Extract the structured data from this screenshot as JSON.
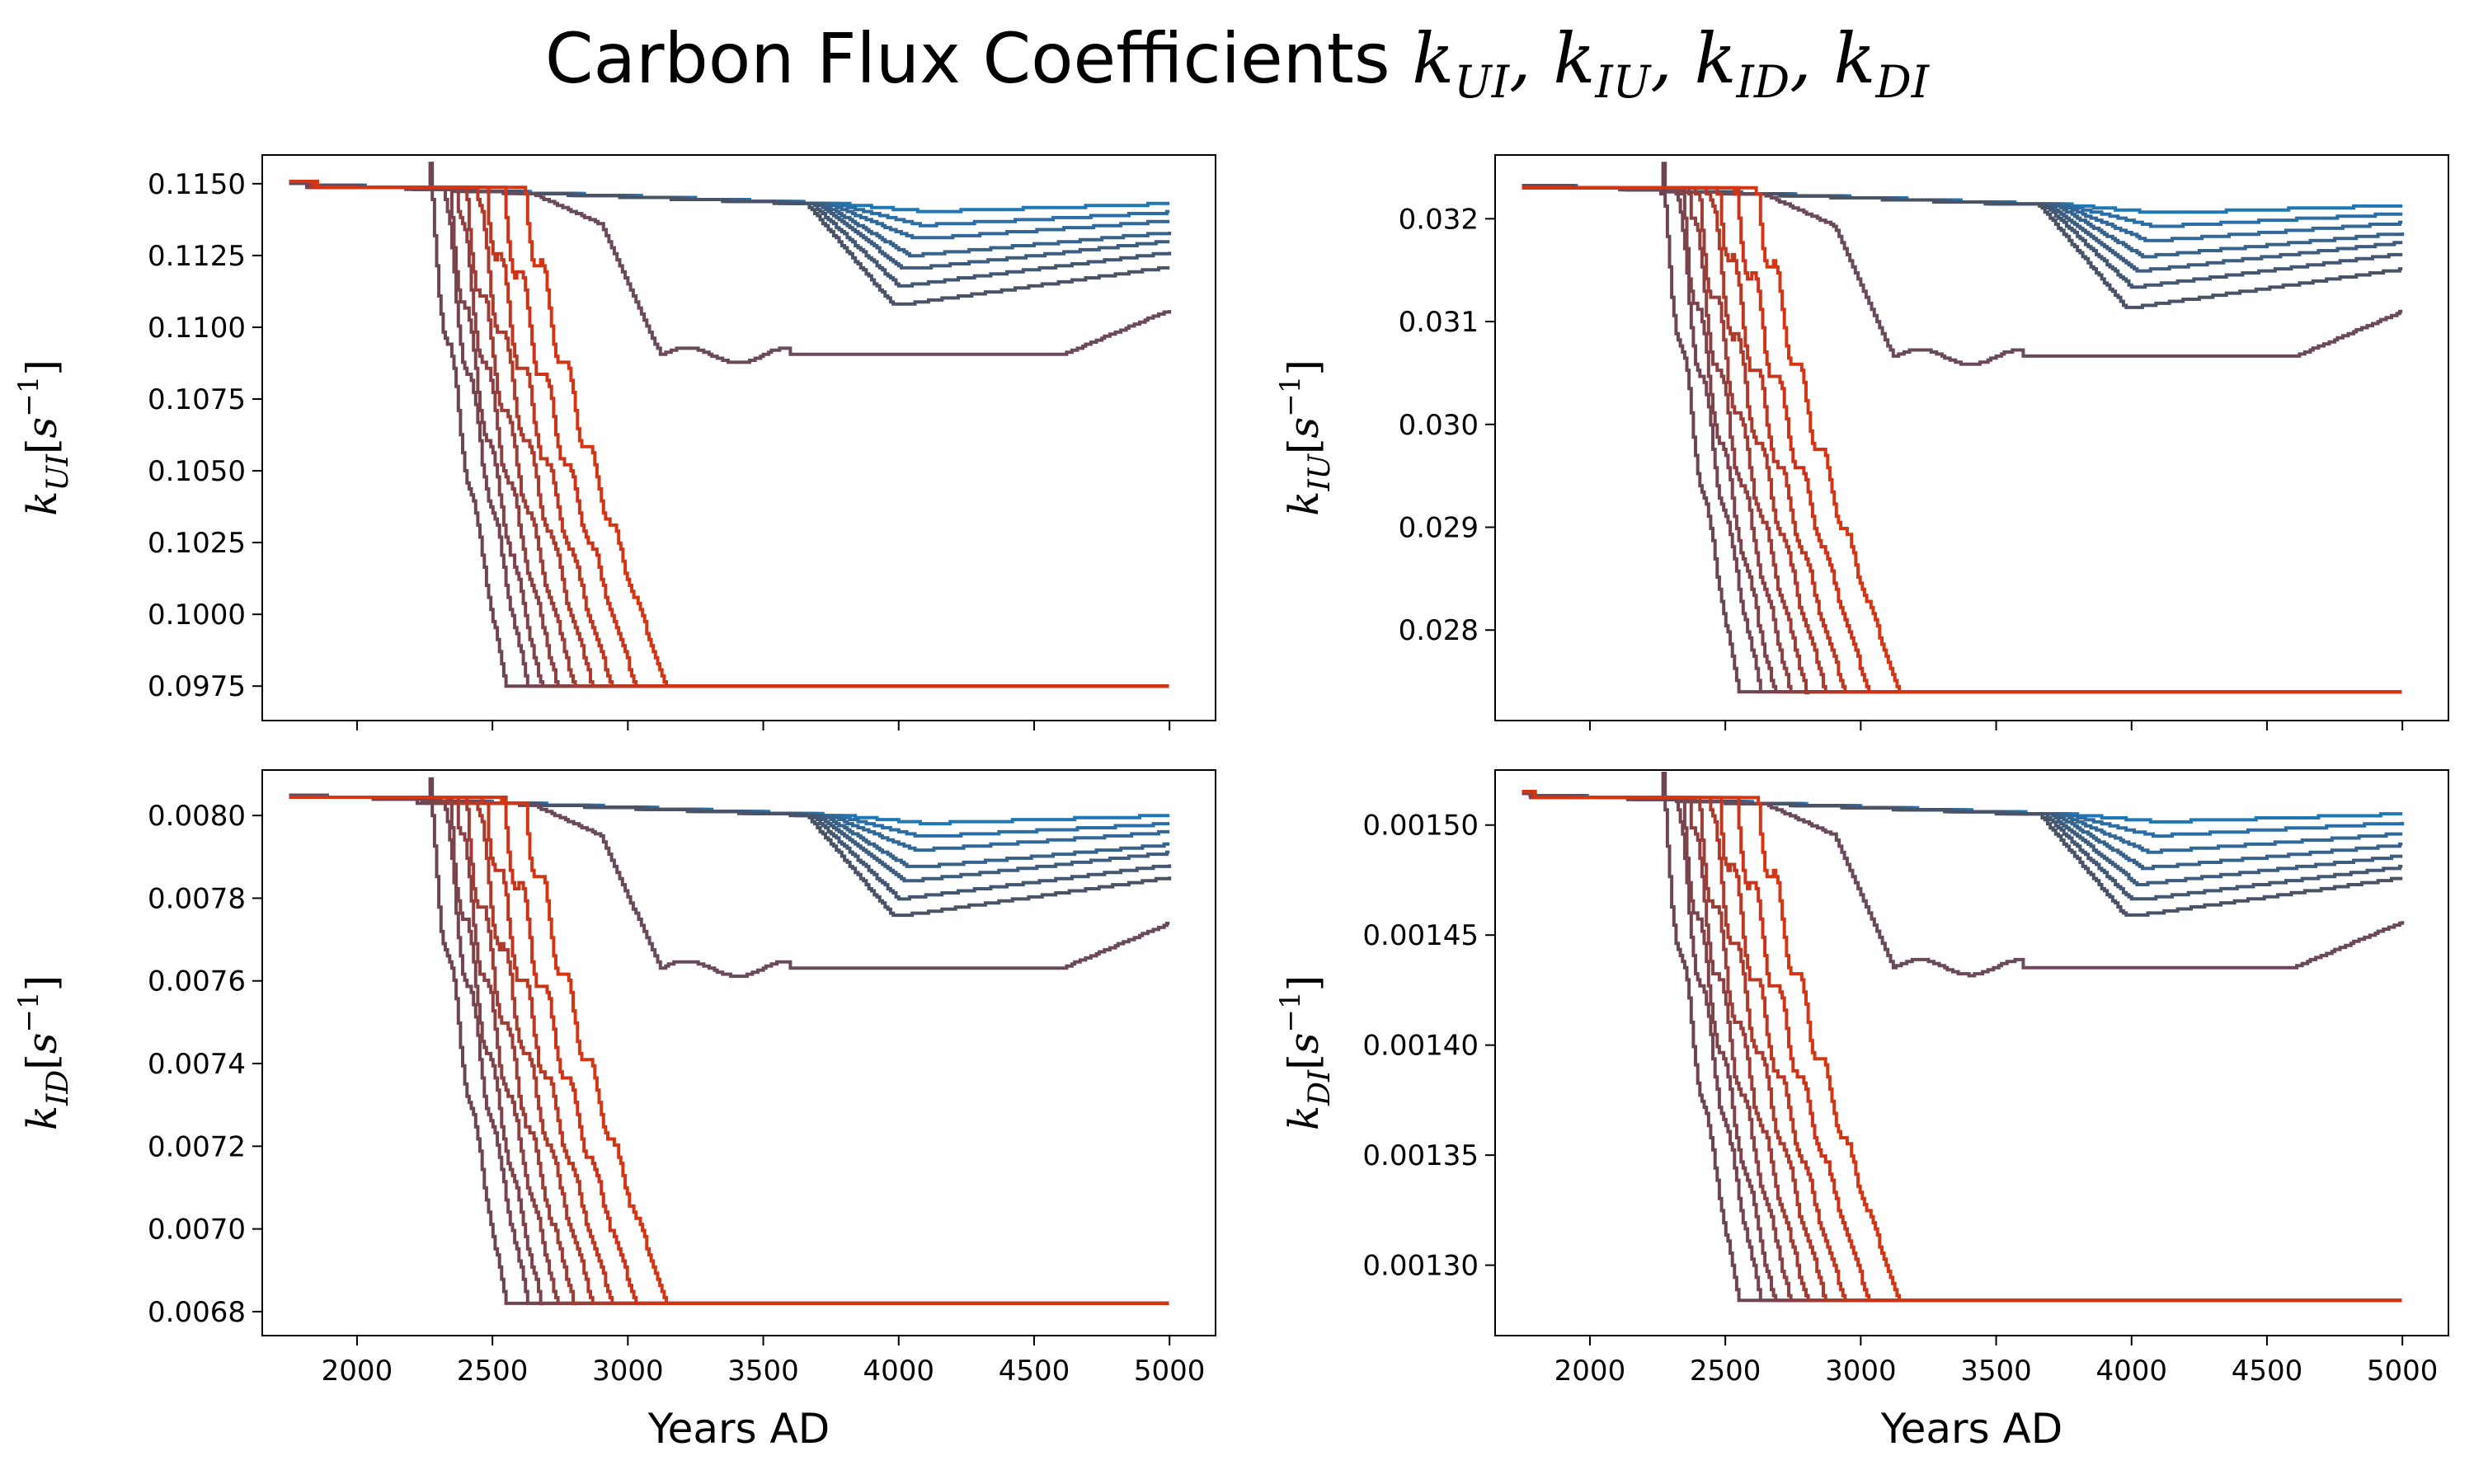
{
  "title": {
    "text": "Carbon Flux Coefficients ",
    "math": "k_UI, k_IU, k_ID, k_DI"
  },
  "chart_data": [
    {
      "type": "line",
      "ylabel": "k_UI[s^-1]",
      "xlabel": "",
      "xlim": [
        1650,
        5170
      ],
      "ylim": [
        0.0963,
        0.116
      ],
      "xticks": [
        2000,
        2500,
        3000,
        3500,
        4000,
        4500,
        5000
      ],
      "yticks": [
        "0.1150",
        "0.1125",
        "0.1100",
        "0.1075",
        "0.1050",
        "0.1025",
        "0.1000",
        "0.0975"
      ],
      "ytick_values": [
        0.115,
        0.1125,
        0.11,
        0.1075,
        0.105,
        0.1025,
        0.1,
        0.0975
      ],
      "y_start": 0.115,
      "y_end_low": 0.0975,
      "y_end_mid": 0.1106,
      "y_end_high": [
        0.1143,
        0.114,
        0.1137,
        0.1133,
        0.113,
        0.1126,
        0.1121
      ],
      "grid": false
    },
    {
      "type": "line",
      "ylabel": "k_IU[s^-1]",
      "xlabel": "",
      "xlim": [
        1650,
        5170
      ],
      "ylim": [
        0.02712,
        0.03262
      ],
      "xticks": [
        2000,
        2500,
        3000,
        3500,
        4000,
        4500,
        5000
      ],
      "yticks": [
        "0.032",
        "0.031",
        "0.030",
        "0.029",
        "0.028"
      ],
      "ytick_values": [
        0.032,
        0.031,
        0.03,
        0.029,
        0.028
      ],
      "y_start": 0.03233,
      "y_end_low": 0.0274,
      "y_end_mid": 0.0311,
      "y_end_high": [
        0.03213,
        0.03205,
        0.03196,
        0.03186,
        0.03177,
        0.03166,
        0.03151
      ],
      "grid": false
    },
    {
      "type": "line",
      "ylabel": "k_ID[s^-1]",
      "xlabel": "Years AD",
      "xlim": [
        1650,
        5170
      ],
      "ylim": [
        0.006742,
        0.00811
      ],
      "xticks": [
        2000,
        2500,
        3000,
        3500,
        4000,
        4500,
        5000
      ],
      "yticks": [
        "0.0080",
        "0.0078",
        "0.0076",
        "0.0074",
        "0.0072",
        "0.0070",
        "0.0068"
      ],
      "ytick_values": [
        0.008,
        0.0078,
        0.0076,
        0.0074,
        0.0072,
        0.007,
        0.0068
      ],
      "y_start": 0.00805,
      "y_end_low": 0.00682,
      "y_end_mid": 0.00774,
      "y_end_high": [
        0.008,
        0.00798,
        0.00796,
        0.00793,
        0.00791,
        0.00788,
        0.00785
      ],
      "grid": false
    },
    {
      "type": "line",
      "ylabel": "k_DI[s^-1]",
      "xlabel": "Years AD",
      "xlim": [
        1650,
        5170
      ],
      "ylim": [
        0.001268,
        0.001525
      ],
      "xticks": [
        2000,
        2500,
        3000,
        3500,
        4000,
        4500,
        5000
      ],
      "yticks": [
        "0.00150",
        "0.00145",
        "0.00140",
        "0.00135",
        "0.00130"
      ],
      "ytick_values": [
        0.0015,
        0.00145,
        0.0014,
        0.00135,
        0.0013
      ],
      "y_start": 0.001514,
      "y_end_low": 0.001284,
      "y_end_mid": 0.001456,
      "y_end_high": [
        0.001505,
        0.001501,
        0.001496,
        0.001491,
        0.001486,
        0.001481,
        0.001476
      ],
      "grid": false
    }
  ],
  "series_style": {
    "colors_high": [
      "#1f77b4",
      "#2a6ea5",
      "#316897",
      "#37628a",
      "#3d5c7e",
      "#435772",
      "#4a5266"
    ],
    "color_mid": "#6a4a5a",
    "colors_low": [
      "#6b4555",
      "#744450",
      "#7e434a",
      "#8d4041",
      "#9d3d36",
      "#ad3a2b",
      "#bd3721",
      "#cc3318",
      "#d43512"
    ],
    "drop_years_low": [
      2350,
      2400,
      2420,
      2450,
      2480,
      2520,
      2560,
      2620,
      2700
    ],
    "drop_years_high": [
      3780,
      3760,
      3740,
      3720,
      3700,
      3680,
      3660
    ]
  }
}
